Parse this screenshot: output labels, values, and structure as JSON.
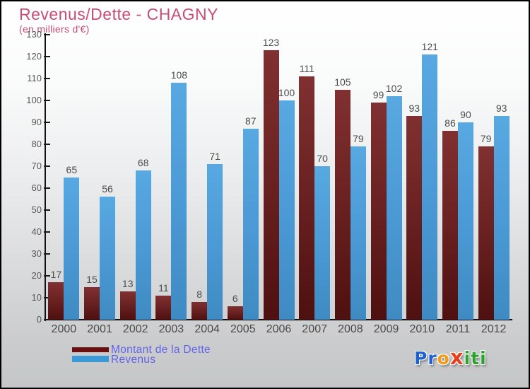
{
  "header": {
    "title": "Revenus/Dette - CHAGNY",
    "subtitle": "(en milliers d'€)"
  },
  "colors": {
    "title_text": "#c74d75",
    "axis_text": "#565656",
    "value_label_text": "#4c4c4c",
    "dette_bar": "#6e2424",
    "revenus_bar": "#4a99d4",
    "legend_dette_swatch": "#6a0f0f",
    "legend_revenus_swatch": "#3d99d6",
    "legend_text": "#6262ec"
  },
  "chart_data": {
    "type": "bar",
    "title": "Revenus/Dette - CHAGNY",
    "subtitle": "(en milliers d'€)",
    "categories": [
      "2000",
      "2001",
      "2002",
      "2003",
      "2004",
      "2005",
      "2006",
      "2007",
      "2008",
      "2009",
      "2010",
      "2011",
      "2012"
    ],
    "series": [
      {
        "name": "Montant de la Dette",
        "color": "#6e2424",
        "values": [
          17,
          15,
          13,
          11,
          8,
          6,
          123,
          111,
          105,
          99,
          93,
          86,
          79
        ]
      },
      {
        "name": "Revenus",
        "color": "#4a99d4",
        "values": [
          65,
          56,
          68,
          108,
          71,
          87,
          100,
          70,
          79,
          102,
          121,
          90,
          93
        ]
      }
    ],
    "xlabel": "",
    "ylabel": "",
    "ylim": [
      0,
      130
    ],
    "ytick_step": 10,
    "grid": false,
    "legend_position": "bottom-left",
    "value_labels_shown": true
  },
  "legend": {
    "items": [
      {
        "label": "Montant de la Dette",
        "color": "#6a0f0f"
      },
      {
        "label": "Revenus",
        "color": "#3d99d6"
      }
    ]
  },
  "logo": {
    "name": "Proxiti",
    "letters": [
      {
        "ch": "P",
        "color": "#1e62d2",
        "big": false
      },
      {
        "ch": "r",
        "color": "#1e62d2",
        "big": false
      },
      {
        "ch": "o",
        "color": "#f39a18",
        "big": false
      },
      {
        "ch": "x",
        "color": "#e8401c",
        "big": true
      },
      {
        "ch": "i",
        "color": "#2da32d",
        "big": false
      },
      {
        "ch": "t",
        "color": "#2da32d",
        "big": false
      },
      {
        "ch": "i",
        "color": "#2da32d",
        "big": false
      }
    ]
  }
}
